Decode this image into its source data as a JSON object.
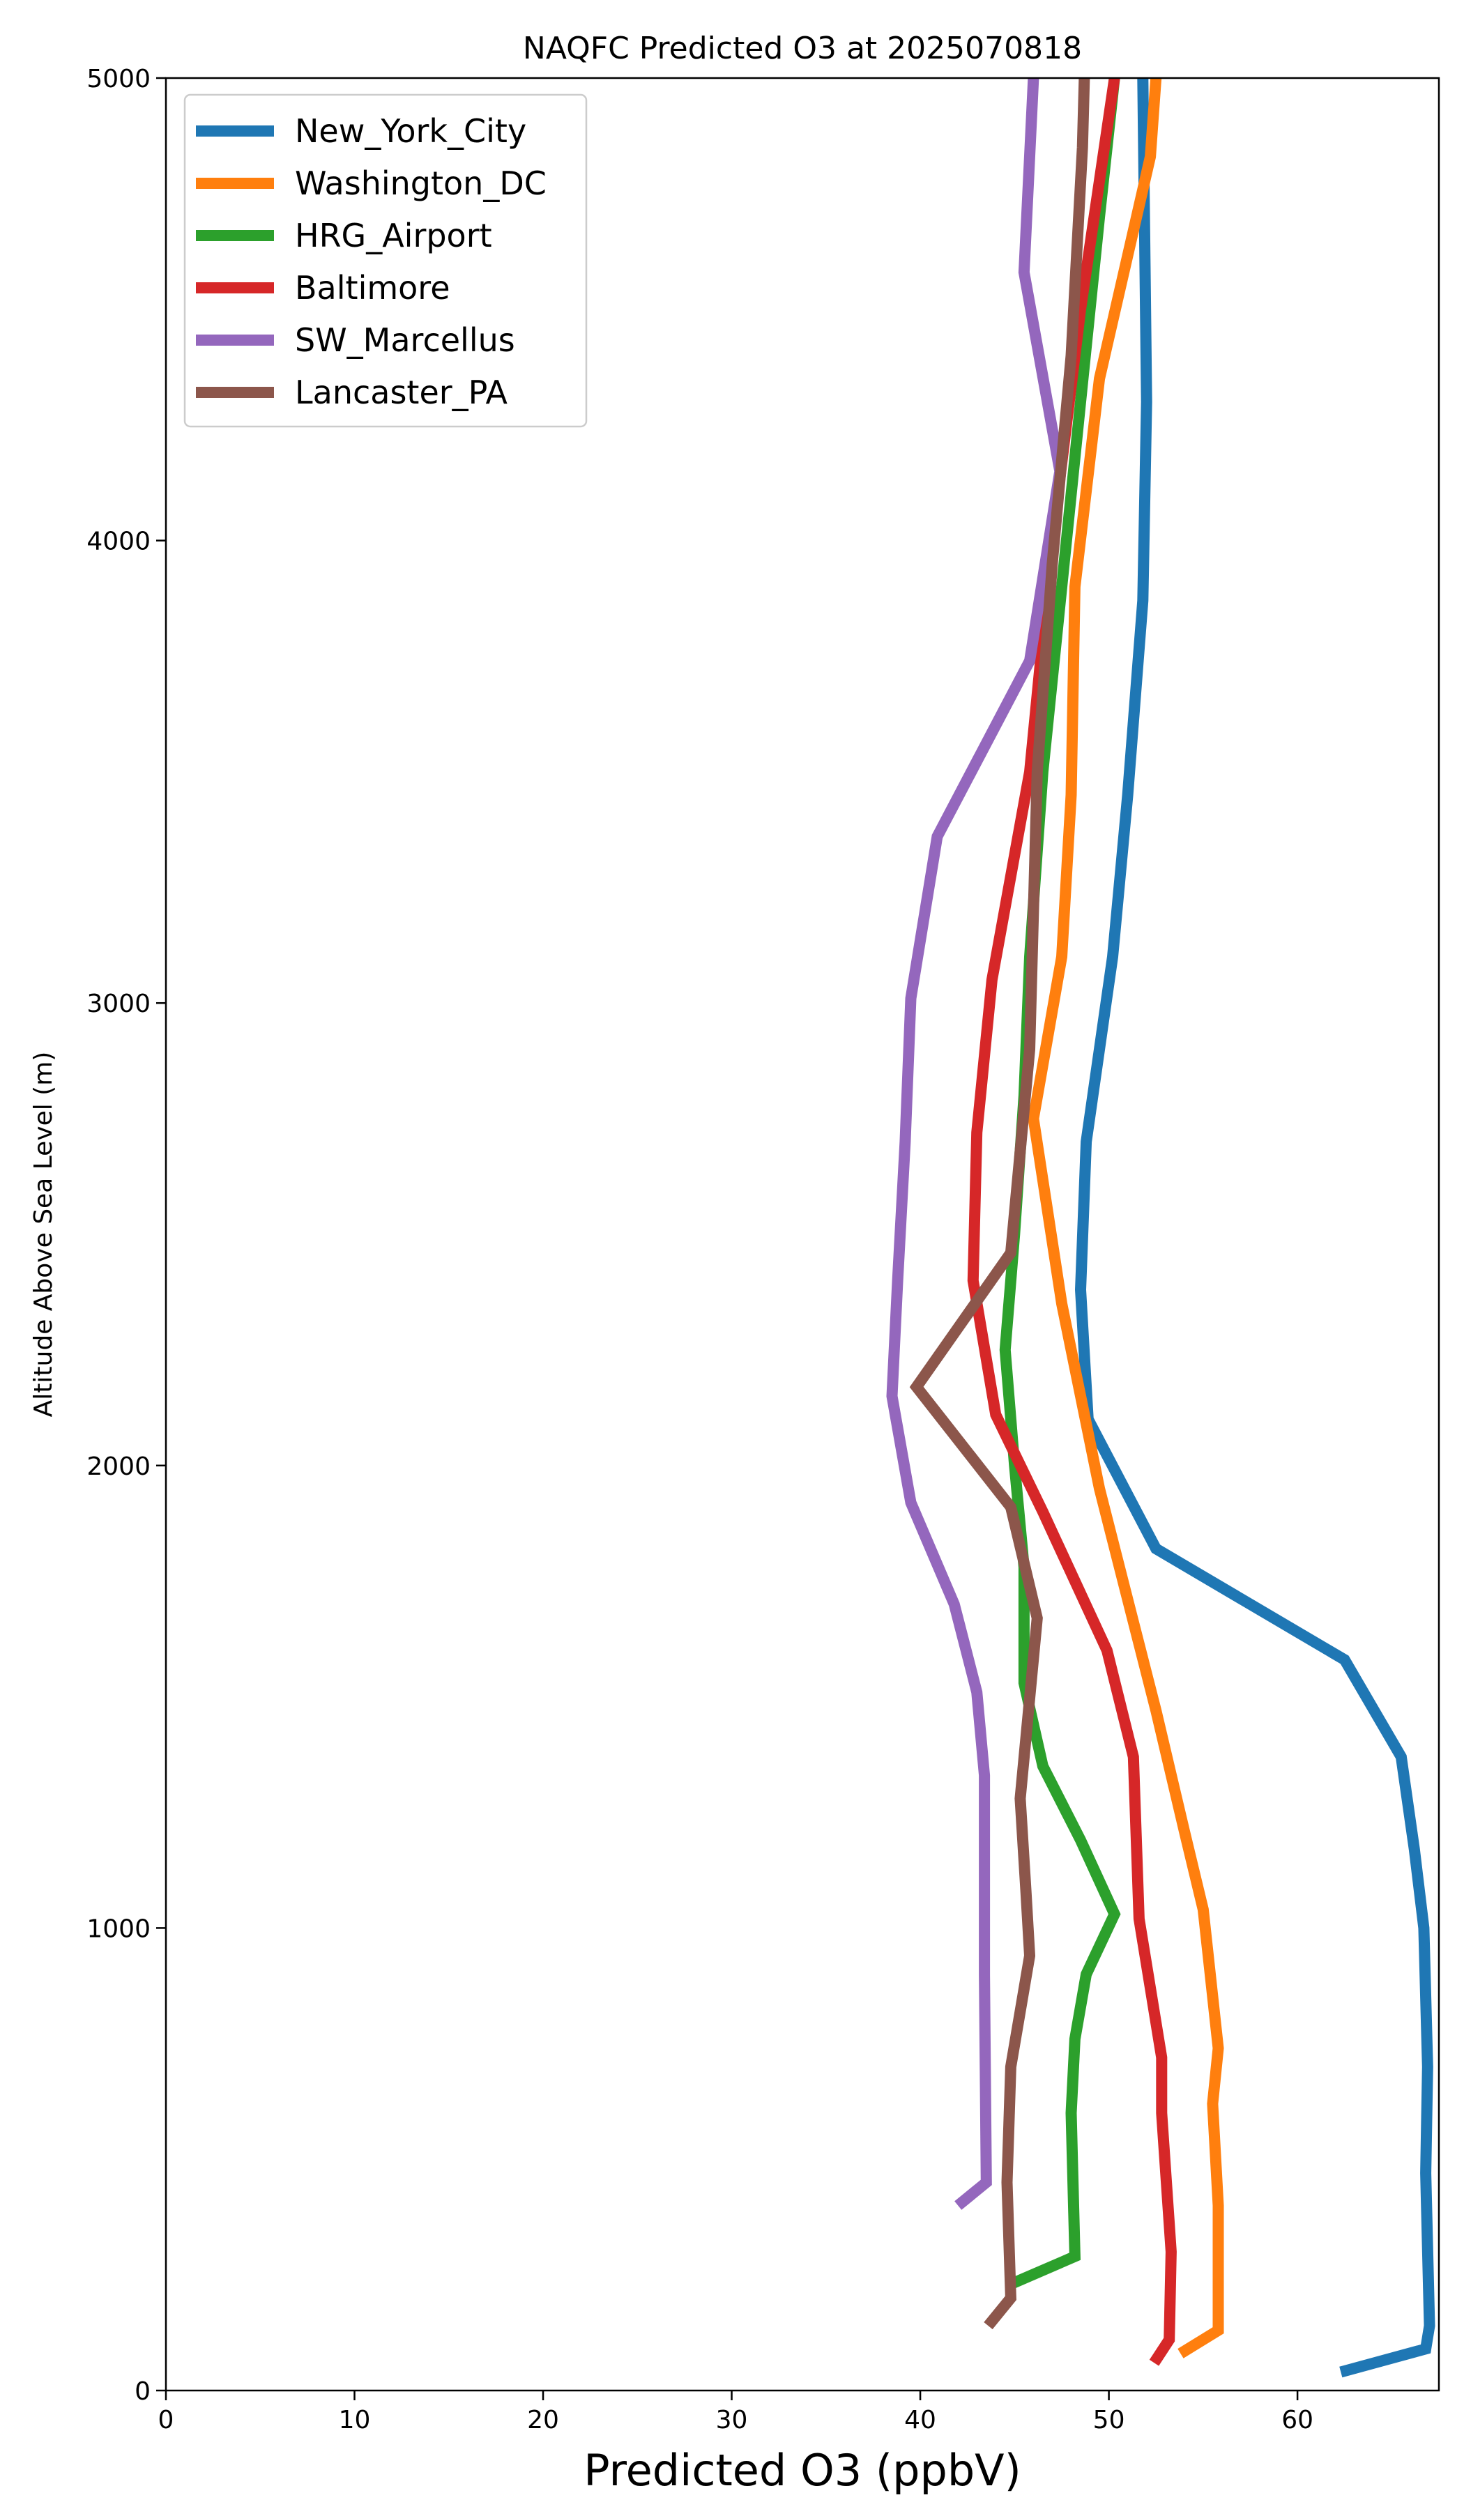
{
  "chart_data": {
    "type": "line",
    "title": "NAQFC Predicted O3 at 2025070818",
    "xlabel": "Predicted O3 (ppbV)",
    "ylabel": "Altitude Above Sea Level (m)",
    "xlim": [
      0,
      67.5
    ],
    "ylim": [
      0,
      5000
    ],
    "xticks": [
      0,
      10,
      20,
      30,
      40,
      50,
      60
    ],
    "yticks": [
      0,
      1000,
      2000,
      3000,
      4000,
      5000
    ],
    "grid": false,
    "legend_position": "top-left",
    "series": [
      {
        "name": "New_York_City",
        "color": "#1f77b4",
        "points": [
          [
            62.3,
            40
          ],
          [
            66.8,
            90
          ],
          [
            67.0,
            140
          ],
          [
            66.8,
            470
          ],
          [
            66.9,
            700
          ],
          [
            66.7,
            1000
          ],
          [
            66.2,
            1170
          ],
          [
            65.5,
            1370
          ],
          [
            62.5,
            1580
          ],
          [
            52.5,
            1820
          ],
          [
            48.9,
            2100
          ],
          [
            48.5,
            2380
          ],
          [
            48.8,
            2700
          ],
          [
            50.2,
            3100
          ],
          [
            51.0,
            3450
          ],
          [
            51.8,
            3870
          ],
          [
            52.0,
            4300
          ],
          [
            51.8,
            5000
          ]
        ]
      },
      {
        "name": "Washington_DC",
        "color": "#ff7f0e",
        "points": [
          [
            53.8,
            80
          ],
          [
            55.8,
            130
          ],
          [
            55.8,
            400
          ],
          [
            55.5,
            620
          ],
          [
            55.8,
            740
          ],
          [
            55.0,
            1040
          ],
          [
            54.0,
            1210
          ],
          [
            52.5,
            1470
          ],
          [
            51.0,
            1710
          ],
          [
            49.5,
            1950
          ],
          [
            47.5,
            2350
          ],
          [
            46.0,
            2750
          ],
          [
            47.5,
            3100
          ],
          [
            48.0,
            3450
          ],
          [
            48.2,
            3900
          ],
          [
            49.5,
            4350
          ],
          [
            52.2,
            4830
          ],
          [
            52.5,
            5000
          ]
        ]
      },
      {
        "name": "HRG_Airport",
        "color": "#2ca02c",
        "points": [
          [
            44.8,
            230
          ],
          [
            48.2,
            290
          ],
          [
            48.0,
            600
          ],
          [
            48.2,
            760
          ],
          [
            48.8,
            900
          ],
          [
            50.3,
            1030
          ],
          [
            48.5,
            1190
          ],
          [
            46.5,
            1350
          ],
          [
            45.5,
            1530
          ],
          [
            45.5,
            1780
          ],
          [
            45.0,
            2000
          ],
          [
            44.5,
            2250
          ],
          [
            45.0,
            2500
          ],
          [
            45.5,
            2800
          ],
          [
            45.8,
            3100
          ],
          [
            46.5,
            3500
          ],
          [
            47.5,
            3900
          ],
          [
            48.5,
            4300
          ],
          [
            49.5,
            4700
          ],
          [
            50.3,
            5000
          ]
        ]
      },
      {
        "name": "Baltimore",
        "color": "#d62728",
        "points": [
          [
            52.4,
            60
          ],
          [
            53.2,
            110
          ],
          [
            53.3,
            300
          ],
          [
            52.8,
            600
          ],
          [
            52.8,
            720
          ],
          [
            51.6,
            1020
          ],
          [
            51.3,
            1370
          ],
          [
            49.9,
            1600
          ],
          [
            46.5,
            1900
          ],
          [
            44.0,
            2110
          ],
          [
            42.8,
            2400
          ],
          [
            43.0,
            2720
          ],
          [
            43.8,
            3050
          ],
          [
            45.8,
            3500
          ],
          [
            47.0,
            4000
          ],
          [
            48.5,
            4500
          ],
          [
            50.3,
            5000
          ]
        ]
      },
      {
        "name": "SW_Marcellus",
        "color": "#9467bd",
        "points": [
          [
            42.0,
            400
          ],
          [
            43.5,
            450
          ],
          [
            43.4,
            900
          ],
          [
            43.4,
            1330
          ],
          [
            43.0,
            1510
          ],
          [
            41.8,
            1700
          ],
          [
            39.5,
            1920
          ],
          [
            38.5,
            2150
          ],
          [
            38.8,
            2400
          ],
          [
            39.2,
            2700
          ],
          [
            39.5,
            3010
          ],
          [
            40.9,
            3360
          ],
          [
            45.8,
            3740
          ],
          [
            47.4,
            4150
          ],
          [
            45.5,
            4580
          ],
          [
            46.0,
            5000
          ]
        ]
      },
      {
        "name": "Lancaster_PA",
        "color": "#8c564b",
        "points": [
          [
            43.6,
            140
          ],
          [
            44.8,
            200
          ],
          [
            44.6,
            450
          ],
          [
            44.8,
            700
          ],
          [
            45.8,
            940
          ],
          [
            45.6,
            1080
          ],
          [
            45.3,
            1280
          ],
          [
            46.2,
            1670
          ],
          [
            44.8,
            1910
          ],
          [
            39.8,
            2170
          ],
          [
            44.8,
            2460
          ],
          [
            45.8,
            2900
          ],
          [
            46.2,
            3500
          ],
          [
            47.0,
            3950
          ],
          [
            48.0,
            4400
          ],
          [
            48.6,
            4850
          ],
          [
            48.7,
            5000
          ]
        ]
      }
    ]
  }
}
